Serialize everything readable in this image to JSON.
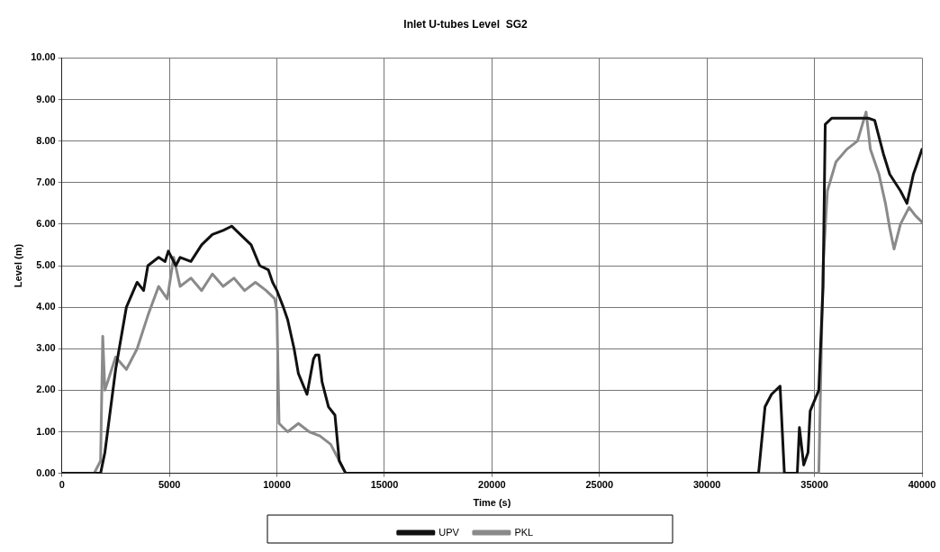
{
  "chart_data": {
    "type": "line",
    "title": "Inlet U-tubes Level  SG2",
    "xlabel": "Time (s)",
    "ylabel": "Level (m)",
    "xlim": [
      0,
      40000
    ],
    "xticks": [
      0,
      5000,
      10000,
      15000,
      20000,
      25000,
      30000,
      35000,
      40000
    ],
    "ylim": [
      0,
      10
    ],
    "yticks": [
      {
        "value": 0,
        "label": "0.00"
      },
      {
        "value": 1,
        "label": "1.00"
      },
      {
        "value": 2,
        "label": "2.00"
      },
      {
        "value": 3,
        "label": "3.00"
      },
      {
        "value": 4,
        "label": "4.00"
      },
      {
        "value": 5,
        "label": "5.00"
      },
      {
        "value": 6,
        "label": "6.00"
      },
      {
        "value": 7,
        "label": "7.00"
      },
      {
        "value": 8,
        "label": "8.00"
      },
      {
        "value": 9,
        "label": "9.00"
      },
      {
        "value": 10,
        "label": "10.00"
      }
    ],
    "grid": true,
    "legend": "bottom",
    "marker": "none",
    "line_style": "solid",
    "series": [
      {
        "name": "UPV",
        "color": "#111111",
        "x": [
          0,
          1800,
          2000,
          2500,
          3000,
          3500,
          3800,
          4000,
          4500,
          4800,
          4950,
          5300,
          5500,
          6000,
          6500,
          7000,
          7500,
          7900,
          8200,
          8800,
          9200,
          9600,
          9800,
          10000,
          10300,
          10500,
          10800,
          11000,
          11400,
          11700,
          11800,
          11950,
          12100,
          12400,
          12700,
          12900,
          13200,
          32400,
          32700,
          33000,
          33400,
          33600,
          34200,
          34300,
          34500,
          34700,
          34800,
          35200,
          35400,
          35500,
          35800,
          37500,
          37800,
          38200,
          38500,
          39000,
          39300,
          39600,
          40000
        ],
        "values": [
          0,
          0,
          0.5,
          2.5,
          4.0,
          4.6,
          4.4,
          5.0,
          5.2,
          5.1,
          5.35,
          5.0,
          5.2,
          5.1,
          5.5,
          5.75,
          5.85,
          5.95,
          5.8,
          5.5,
          5.0,
          4.9,
          4.6,
          4.4,
          4.0,
          3.7,
          3.0,
          2.4,
          1.9,
          2.75,
          2.85,
          2.85,
          2.2,
          1.6,
          1.4,
          0.3,
          0,
          0,
          1.6,
          1.9,
          2.1,
          0,
          0,
          1.1,
          0.2,
          0.5,
          1.5,
          2.0,
          4.5,
          8.4,
          8.55,
          8.55,
          8.5,
          7.7,
          7.2,
          6.8,
          6.5,
          7.2,
          7.8
        ]
      },
      {
        "name": "PKL",
        "color": "#8a8a8a",
        "x": [
          0,
          1500,
          1800,
          1900,
          2000,
          2500,
          3000,
          3500,
          4000,
          4500,
          4900,
          5200,
          5500,
          6000,
          6500,
          7000,
          7500,
          8000,
          8500,
          9000,
          9500,
          9900,
          10000,
          10100,
          10500,
          11000,
          11500,
          12000,
          12500,
          12900,
          13200,
          35200,
          35400,
          35600,
          36000,
          36500,
          37000,
          37400,
          37600,
          38000,
          38300,
          38500,
          38700,
          39000,
          39400,
          39700,
          40000
        ],
        "values": [
          0,
          0,
          0.3,
          3.3,
          2.0,
          2.8,
          2.5,
          3.0,
          3.8,
          4.5,
          4.2,
          5.2,
          4.5,
          4.7,
          4.4,
          4.8,
          4.5,
          4.7,
          4.4,
          4.6,
          4.4,
          4.2,
          3.9,
          1.2,
          1.0,
          1.2,
          1.0,
          0.9,
          0.7,
          0.3,
          0,
          0,
          5.0,
          6.8,
          7.5,
          7.8,
          8.0,
          8.7,
          7.8,
          7.2,
          6.5,
          5.9,
          5.4,
          6.0,
          6.4,
          6.2,
          6.05
        ]
      }
    ]
  }
}
